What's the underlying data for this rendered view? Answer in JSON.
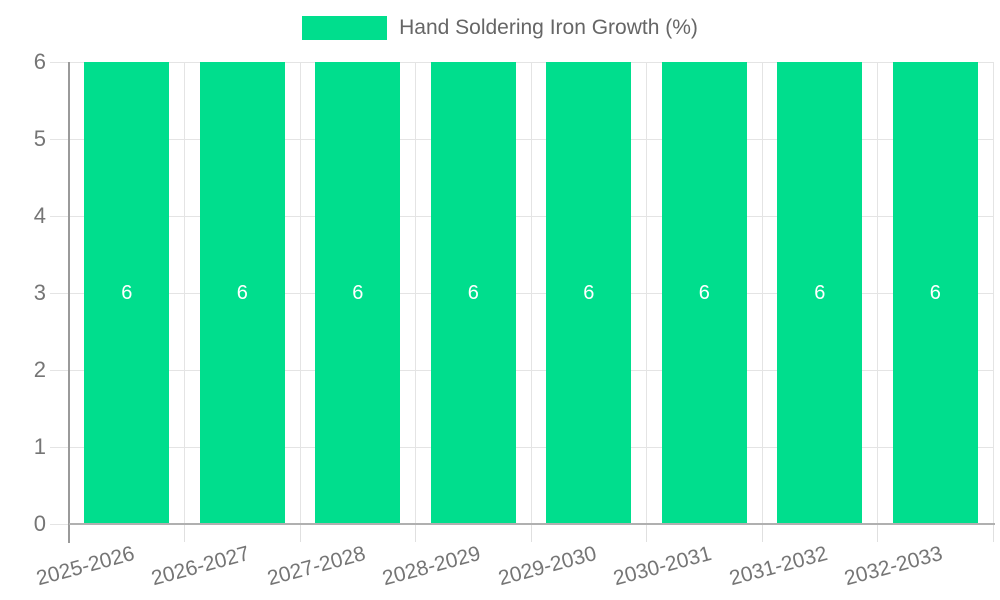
{
  "chart_data": {
    "type": "bar",
    "categories": [
      "2025-2026",
      "2026-2027",
      "2027-2028",
      "2028-2029",
      "2029-2030",
      "2030-2031",
      "2031-2032",
      "2032-2033"
    ],
    "series": [
      {
        "name": "Hand Soldering Iron Growth (%)",
        "values": [
          6,
          6,
          6,
          6,
          6,
          6,
          6,
          6
        ]
      }
    ],
    "title": "",
    "xlabel": "",
    "ylabel": "",
    "ylim": [
      0,
      6
    ],
    "yticks": [
      0,
      1,
      2,
      3,
      4,
      5,
      6
    ],
    "grid": true,
    "legend_position": "top",
    "bar_color": "#00de8d",
    "value_label_color": "#ffffff",
    "axis_text_color": "#757575",
    "legend_text_color": "#666666",
    "gridline_color": "#e4e4e4"
  },
  "legend": {
    "label": "Hand Soldering Iron Growth (%)"
  }
}
